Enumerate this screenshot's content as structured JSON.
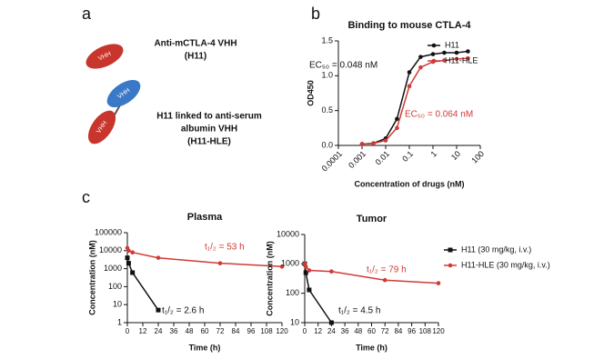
{
  "panel_labels": [
    "a",
    "b",
    "c"
  ],
  "panel_a": {
    "ellipse_label": "VHH",
    "item_1": [
      "Anti-mCTLA-4 VHH",
      "(H11)"
    ],
    "item_2": [
      "H11 linked to anti-serum",
      "albumin VHH",
      "(H11-HLE)"
    ]
  },
  "chart_data": [
    {
      "type": "line",
      "title": "Binding to mouse CTLA-4",
      "xlabel": "Concentration of drugs (nM)",
      "ylabel": "OD450",
      "xscale": "log",
      "yscale": "linear",
      "xlim": [
        0.0001,
        100
      ],
      "xticks": [
        0.0001,
        0.001,
        0.01,
        0.1,
        1,
        10,
        100
      ],
      "ylim": [
        0,
        1.5
      ],
      "yticks": [
        {
          "value": 0,
          "label": "0.0"
        },
        {
          "value": 0.5,
          "label": "0.5"
        },
        {
          "value": 1,
          "label": "1.0"
        },
        {
          "value": 1.5,
          "label": "1.5"
        }
      ],
      "series": [
        {
          "name": "H11",
          "color": "#111111",
          "marker": "circle",
          "x": [
            0.001,
            0.003,
            0.01,
            0.03,
            0.1,
            0.3,
            1,
            3,
            10,
            30
          ],
          "values": [
            0.02,
            0.03,
            0.1,
            0.38,
            1.05,
            1.27,
            1.31,
            1.33,
            1.33,
            1.35
          ]
        },
        {
          "name": "H11-HLE",
          "color": "#d03a36",
          "marker": "circle",
          "x": [
            0.001,
            0.003,
            0.01,
            0.03,
            0.1,
            0.3,
            1,
            3,
            10,
            30
          ],
          "values": [
            0.02,
            0.03,
            0.07,
            0.25,
            0.85,
            1.12,
            1.2,
            1.22,
            1.24,
            1.25
          ]
        }
      ],
      "annotations": [
        {
          "text": "EC₅₀ = 0.048 nM",
          "color": "#111111"
        },
        {
          "text": "EC₅₀ = 0.064 nM",
          "color": "#d03a36"
        }
      ],
      "legend": "upper right"
    },
    {
      "type": "line",
      "title": "Plasma",
      "xlabel": "Time (h)",
      "ylabel": "Concentration (nM)",
      "xscale": "linear",
      "yscale": "log",
      "xlim": [
        0,
        120
      ],
      "xticks": [
        0,
        12,
        24,
        36,
        48,
        60,
        72,
        84,
        96,
        108,
        120
      ],
      "ylim": [
        1,
        100000
      ],
      "yticks": [
        1,
        10,
        100,
        1000,
        10000,
        100000
      ],
      "series": [
        {
          "color": "#111111",
          "marker": "square",
          "x": [
            0,
            1,
            4,
            24
          ],
          "values": [
            4000,
            2000,
            600,
            5
          ]
        },
        {
          "color": "#d03a36",
          "marker": "circle",
          "x": [
            0,
            1,
            4,
            24,
            72,
            120
          ],
          "values": [
            14000,
            10000,
            8000,
            4000,
            2000,
            1300
          ]
        }
      ],
      "annotations": [
        {
          "text": "t₁/₂ = 53 h",
          "color": "#d03a36"
        },
        {
          "text": "t₁/₂ = 2.6 h",
          "color": "#111111"
        }
      ]
    },
    {
      "type": "line",
      "title": "Tumor",
      "xlabel": "Time (h)",
      "ylabel": "Concentration (nM)",
      "xscale": "linear",
      "yscale": "log",
      "xlim": [
        0,
        120
      ],
      "xticks": [
        0,
        12,
        24,
        36,
        48,
        60,
        72,
        84,
        96,
        108,
        120
      ],
      "ylim": [
        10,
        10000
      ],
      "yticks": [
        10,
        100,
        1000,
        10000
      ],
      "series": [
        {
          "name": "H11 (30 mg/kg, i.v.)",
          "color": "#111111",
          "marker": "square",
          "x": [
            0,
            1,
            4,
            24
          ],
          "values": [
            1000,
            500,
            130,
            10
          ]
        },
        {
          "name": "H11-HLE (30 mg/kg, i.v.)",
          "color": "#d03a36",
          "marker": "circle",
          "x": [
            0,
            1,
            4,
            24,
            72,
            120
          ],
          "values": [
            1000,
            800,
            600,
            550,
            280,
            220
          ]
        }
      ],
      "annotations": [
        {
          "text": "t₁/₂ = 79 h",
          "color": "#d03a36"
        },
        {
          "text": "t₁/₂ = 4.5 h",
          "color": "#111111"
        }
      ],
      "legend": "right"
    }
  ]
}
